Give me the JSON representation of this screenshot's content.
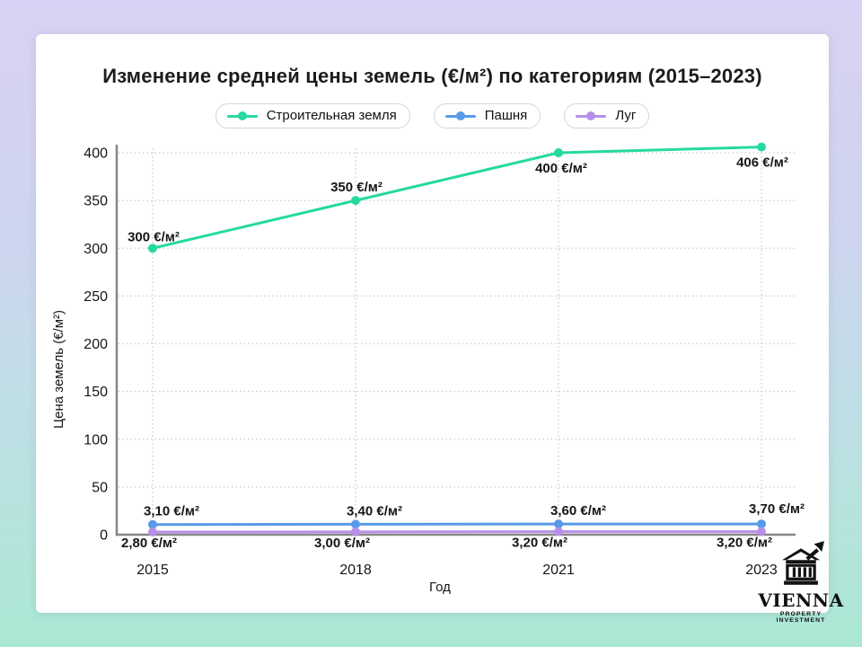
{
  "header": {
    "title": "Изменение средней цены земель (€/м²) по категориям (2015–2023)"
  },
  "legend": {
    "items": [
      {
        "label": "Строительная земля",
        "color": "#25d9a0"
      },
      {
        "label": "Пашня",
        "color": "#579ae8"
      },
      {
        "label": "Луг",
        "color": "#b78fe8"
      }
    ]
  },
  "chart_data": {
    "type": "line",
    "title": "Изменение средней цены земель (€/м²) по категориям (2015–2023)",
    "xlabel": "Год",
    "ylabel": "Цена земель (€/м²)",
    "categories": [
      "2015",
      "2018",
      "2021",
      "2023"
    ],
    "ylim": [
      0,
      400
    ],
    "y_ticks": [
      0,
      50,
      100,
      150,
      200,
      250,
      300,
      350,
      400
    ],
    "grid": true,
    "legend_position": "top",
    "series": [
      {
        "name": "Строительная земля",
        "color": "#25d9a0",
        "values": [
          300,
          350,
          400,
          406
        ],
        "point_labels": [
          "300 €/м²",
          "350 €/м²",
          "400 €/м²",
          "406 €/м²"
        ],
        "label_positions": [
          "above",
          "above",
          "below",
          "below"
        ]
      },
      {
        "name": "Пашня",
        "color": "#579ae8",
        "values": [
          3.1,
          3.4,
          3.6,
          3.7
        ],
        "point_labels": [
          "3,10 €/м²",
          "3,40 €/м²",
          "3,60 €/м²",
          "3,70 €/м²"
        ],
        "label_positions": [
          "above",
          "above",
          "above",
          "above"
        ]
      },
      {
        "name": "Луг",
        "color": "#b78fe8",
        "values": [
          2.8,
          3.0,
          3.2,
          3.2
        ],
        "point_labels": [
          "2,80 €/м²",
          "3,00 €/м²",
          "3,20 €/м²",
          "3,20 €/м²"
        ],
        "label_positions": [
          "below",
          "below",
          "below",
          "below"
        ]
      }
    ]
  },
  "logo": {
    "name": "VIENNA",
    "tagline": "PROPERTY INVESTMENT"
  }
}
